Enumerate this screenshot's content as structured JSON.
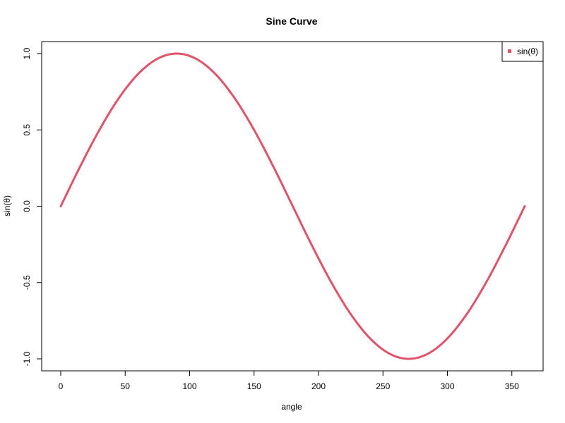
{
  "chart_data": {
    "type": "line",
    "title": "Sine Curve",
    "xlabel": "angle",
    "ylabel": "sin(θ)",
    "xlim": [
      0,
      360
    ],
    "ylim": [
      -1.0,
      1.0
    ],
    "x_ticks": [
      0,
      50,
      100,
      150,
      200,
      250,
      300,
      350
    ],
    "x_tick_labels": [
      "0",
      "50",
      "100",
      "150",
      "200",
      "250",
      "300",
      "350"
    ],
    "y_ticks": [
      -1.0,
      -0.5,
      0.0,
      0.5,
      1.0
    ],
    "y_tick_labels": [
      "-1.0",
      "-0.5",
      "0.0",
      "0.5",
      "1.0"
    ],
    "grid": false,
    "legend": {
      "placement": "top-right",
      "entries": [
        "sin(θ)"
      ]
    },
    "series": [
      {
        "name": "sin(θ)",
        "color": "#DF536B",
        "x": [
          0,
          15,
          30,
          45,
          60,
          75,
          90,
          105,
          120,
          135,
          150,
          165,
          180,
          195,
          210,
          225,
          240,
          255,
          270,
          285,
          300,
          315,
          330,
          345,
          360
        ],
        "y": [
          0.0,
          0.259,
          0.5,
          0.707,
          0.866,
          0.966,
          1.0,
          0.966,
          0.866,
          0.707,
          0.5,
          0.259,
          0.0,
          -0.259,
          -0.5,
          -0.707,
          -0.866,
          -0.966,
          -1.0,
          -0.966,
          -0.866,
          -0.707,
          -0.5,
          -0.259,
          0.0
        ]
      }
    ]
  }
}
